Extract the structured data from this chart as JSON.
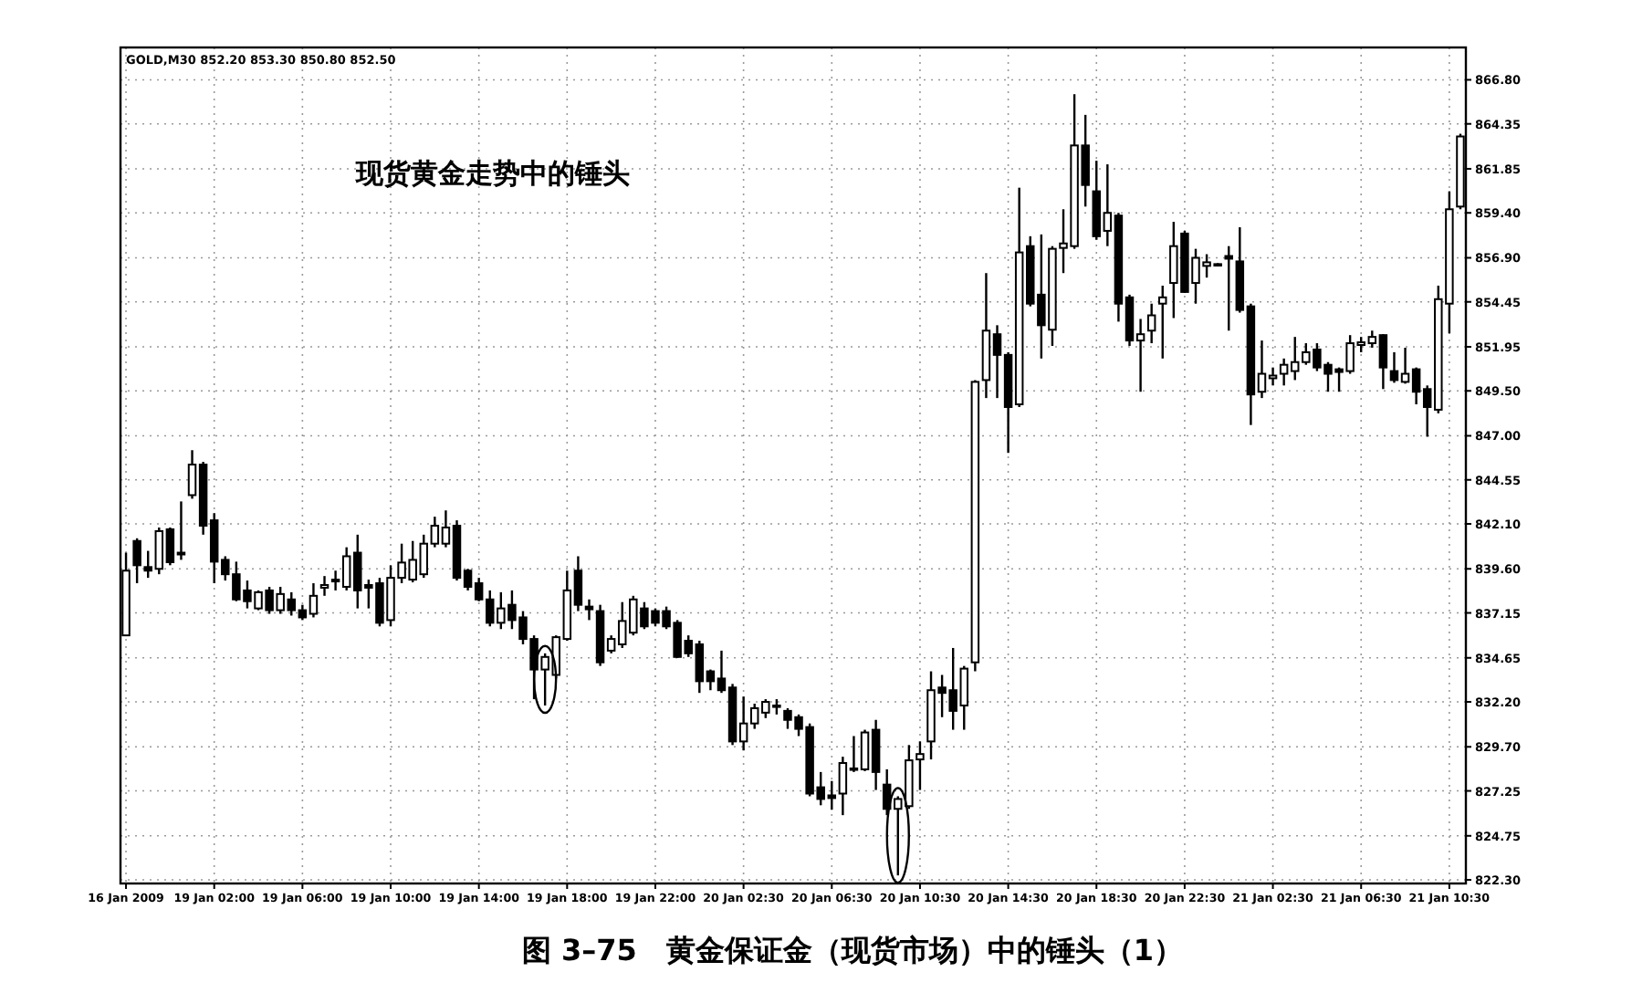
{
  "chart_data": {
    "type": "candlestick",
    "title": "图 3–75　黄金保证金（现货市场）中的锤头（1）",
    "annotations": [
      "GOLD,M30 852.20 853.30 850.80 852.50",
      "现货黄金走势中的锤头"
    ],
    "categories": [
      "16 Jan 2009",
      null,
      null,
      null,
      null,
      null,
      null,
      null,
      "19 Jan 02:00",
      null,
      null,
      null,
      null,
      null,
      null,
      null,
      "19 Jan 06:00",
      null,
      null,
      null,
      null,
      null,
      null,
      null,
      "19 Jan 10:00",
      null,
      null,
      null,
      null,
      null,
      null,
      null,
      "19 Jan 14:00",
      null,
      null,
      null,
      null,
      null,
      null,
      null,
      "19 Jan 18:00",
      null,
      null,
      null,
      null,
      null,
      null,
      null,
      "19 Jan 22:00",
      null,
      null,
      null,
      null,
      null,
      null,
      null,
      "20 Jan 02:30",
      null,
      null,
      null,
      null,
      null,
      null,
      null,
      "20 Jan 06:30",
      null,
      null,
      null,
      null,
      null,
      null,
      null,
      "20 Jan 10:30",
      null,
      null,
      null,
      null,
      null,
      null,
      null,
      "20 Jan 14:30",
      null,
      null,
      null,
      null,
      null,
      null,
      null,
      "20 Jan 18:30",
      null,
      null,
      null,
      null,
      null,
      null,
      null,
      "20 Jan 22:30",
      null,
      null,
      null,
      null,
      null,
      null,
      null,
      "21 Jan 02:30",
      null,
      null,
      null,
      null,
      null,
      null,
      null,
      "21 Jan 06:30",
      null,
      null,
      null,
      null,
      null,
      null,
      null,
      "21 Jan 10:30",
      null
    ],
    "ohlc": [
      [
        835.9,
        840.5,
        835.9,
        839.5
      ],
      [
        841.15,
        841.3,
        838.8,
        839.8
      ],
      [
        839.7,
        840.6,
        839.1,
        839.5
      ],
      [
        839.6,
        841.9,
        839.3,
        841.7
      ],
      [
        841.8,
        841.9,
        839.8,
        839.97
      ],
      [
        840.5,
        843.35,
        840.1,
        840.4
      ],
      [
        843.7,
        846.2,
        843.5,
        845.4
      ],
      [
        845.4,
        845.55,
        841.5,
        842.0
      ],
      [
        842.3,
        842.7,
        838.8,
        840.0
      ],
      [
        840.1,
        840.3,
        838.95,
        839.3
      ],
      [
        839.3,
        840.0,
        837.8,
        837.9
      ],
      [
        838.4,
        838.95,
        837.4,
        837.8
      ],
      [
        837.4,
        838.4,
        837.3,
        838.3
      ],
      [
        838.4,
        838.6,
        837.1,
        837.3
      ],
      [
        837.3,
        838.6,
        837.1,
        838.2
      ],
      [
        837.9,
        838.3,
        837.0,
        837.3
      ],
      [
        837.3,
        837.6,
        836.75,
        836.9
      ],
      [
        837.1,
        838.8,
        836.9,
        838.1
      ],
      [
        838.55,
        839.2,
        838.1,
        838.7
      ],
      [
        838.9,
        839.5,
        838.4,
        839.0
      ],
      [
        838.6,
        840.8,
        838.4,
        840.3
      ],
      [
        840.5,
        841.5,
        837.4,
        838.4
      ],
      [
        838.7,
        839.0,
        837.4,
        838.55
      ],
      [
        838.8,
        839.1,
        836.4,
        836.6
      ],
      [
        836.75,
        839.8,
        836.4,
        839.1
      ],
      [
        839.1,
        841.0,
        838.8,
        839.95
      ],
      [
        839.0,
        841.15,
        838.85,
        840.1
      ],
      [
        839.3,
        841.5,
        839.1,
        841.0
      ],
      [
        841.0,
        842.5,
        840.8,
        842.0
      ],
      [
        841.0,
        842.85,
        840.8,
        841.9
      ],
      [
        842.0,
        842.3,
        838.95,
        839.1
      ],
      [
        839.5,
        839.6,
        838.4,
        838.6
      ],
      [
        838.8,
        839.1,
        837.8,
        837.9
      ],
      [
        837.9,
        838.4,
        836.4,
        836.6
      ],
      [
        836.6,
        838.3,
        836.25,
        837.4
      ],
      [
        837.6,
        838.4,
        836.25,
        836.75
      ],
      [
        836.9,
        837.25,
        835.4,
        835.7
      ],
      [
        835.7,
        835.9,
        832.35,
        834.0
      ],
      [
        834.0,
        834.9,
        832.0,
        834.7
      ],
      [
        833.7,
        835.9,
        833.5,
        835.8
      ],
      [
        835.7,
        839.5,
        835.6,
        838.4
      ],
      [
        839.5,
        840.3,
        837.25,
        837.6
      ],
      [
        837.5,
        837.9,
        836.75,
        837.35
      ],
      [
        837.25,
        837.6,
        834.2,
        834.4
      ],
      [
        835.05,
        835.9,
        834.9,
        835.7
      ],
      [
        835.4,
        837.75,
        835.2,
        836.7
      ],
      [
        836.05,
        838.1,
        835.9,
        837.9
      ],
      [
        837.4,
        837.75,
        836.25,
        836.4
      ],
      [
        837.25,
        837.4,
        836.4,
        836.6
      ],
      [
        837.25,
        837.5,
        836.25,
        836.4
      ],
      [
        836.6,
        836.75,
        834.65,
        834.7
      ],
      [
        835.6,
        835.9,
        834.7,
        834.9
      ],
      [
        835.4,
        835.6,
        832.7,
        833.35
      ],
      [
        833.9,
        834.0,
        832.85,
        833.35
      ],
      [
        833.5,
        835.05,
        832.7,
        832.85
      ],
      [
        833.0,
        833.2,
        829.8,
        830.0
      ],
      [
        830.0,
        832.5,
        829.5,
        831.0
      ],
      [
        831.0,
        832.1,
        830.7,
        831.85
      ],
      [
        831.6,
        832.35,
        831.3,
        832.2
      ],
      [
        832.0,
        832.35,
        831.5,
        831.95
      ],
      [
        831.7,
        831.85,
        830.7,
        831.2
      ],
      [
        831.35,
        831.5,
        830.3,
        830.7
      ],
      [
        830.8,
        831.0,
        826.95,
        827.1
      ],
      [
        827.45,
        828.3,
        826.45,
        826.8
      ],
      [
        827.0,
        827.8,
        826.2,
        826.85
      ],
      [
        827.1,
        829.15,
        825.9,
        828.8
      ],
      [
        828.45,
        830.3,
        828.3,
        828.5
      ],
      [
        828.45,
        830.65,
        828.35,
        830.5
      ],
      [
        830.65,
        831.2,
        827.3,
        828.3
      ],
      [
        827.6,
        828.45,
        825.9,
        826.25
      ],
      [
        826.25,
        826.95,
        822.55,
        826.8
      ],
      [
        826.4,
        829.8,
        826.25,
        828.95
      ],
      [
        829.0,
        830.0,
        827.3,
        829.3
      ],
      [
        830.0,
        833.9,
        829.0,
        832.85
      ],
      [
        833.0,
        833.7,
        831.35,
        832.7
      ],
      [
        832.85,
        835.2,
        830.65,
        831.7
      ],
      [
        832.0,
        834.2,
        830.65,
        834.05
      ],
      [
        834.4,
        850.1,
        833.9,
        850.0
      ],
      [
        850.1,
        856.05,
        849.1,
        852.85
      ],
      [
        852.65,
        853.15,
        849.1,
        851.5
      ],
      [
        851.5,
        851.65,
        846.05,
        848.6
      ],
      [
        848.75,
        860.8,
        848.6,
        857.2
      ],
      [
        857.55,
        858.1,
        854.2,
        854.35
      ],
      [
        854.85,
        858.2,
        851.3,
        853.15
      ],
      [
        852.9,
        857.55,
        852.0,
        857.4
      ],
      [
        857.45,
        859.6,
        856.05,
        857.7
      ],
      [
        857.55,
        866.0,
        857.4,
        863.15
      ],
      [
        863.15,
        864.85,
        859.75,
        860.95
      ],
      [
        860.6,
        862.3,
        857.9,
        858.1
      ],
      [
        858.4,
        862.1,
        857.55,
        859.4
      ],
      [
        859.25,
        859.4,
        853.35,
        854.35
      ],
      [
        854.7,
        854.85,
        852.0,
        852.3
      ],
      [
        852.3,
        853.5,
        849.45,
        852.65
      ],
      [
        852.85,
        854.35,
        852.15,
        853.7
      ],
      [
        854.35,
        855.35,
        851.3,
        854.7
      ],
      [
        855.5,
        858.9,
        853.55,
        857.55
      ],
      [
        858.25,
        858.4,
        854.95,
        855.0
      ],
      [
        855.5,
        857.4,
        854.35,
        856.9
      ],
      [
        856.45,
        857.1,
        855.8,
        856.65
      ],
      [
        856.5,
        856.6,
        856.45,
        856.55
      ],
      [
        857.0,
        857.55,
        852.85,
        856.85
      ],
      [
        856.7,
        858.6,
        853.85,
        854.0
      ],
      [
        854.2,
        854.35,
        847.6,
        849.3
      ],
      [
        849.45,
        852.3,
        849.1,
        850.45
      ],
      [
        850.2,
        850.8,
        849.8,
        850.35
      ],
      [
        850.45,
        851.3,
        849.8,
        850.95
      ],
      [
        850.6,
        852.5,
        850.1,
        851.1
      ],
      [
        851.1,
        852.15,
        850.95,
        851.65
      ],
      [
        851.8,
        852.15,
        850.6,
        850.8
      ],
      [
        850.95,
        851.1,
        849.45,
        850.45
      ],
      [
        850.7,
        850.8,
        849.45,
        850.55
      ],
      [
        850.6,
        852.6,
        850.45,
        852.15
      ],
      [
        852.05,
        852.5,
        851.65,
        852.2
      ],
      [
        852.15,
        852.85,
        851.9,
        852.5
      ],
      [
        852.6,
        852.65,
        849.6,
        850.8
      ],
      [
        850.6,
        851.65,
        849.95,
        850.1
      ],
      [
        850.0,
        851.9,
        849.9,
        850.45
      ],
      [
        850.7,
        850.8,
        848.75,
        849.45
      ],
      [
        849.6,
        849.8,
        846.95,
        848.6
      ],
      [
        848.45,
        855.35,
        848.25,
        854.6
      ],
      [
        854.35,
        860.6,
        852.7,
        859.6
      ],
      [
        859.75,
        863.8,
        859.6,
        863.65
      ]
    ],
    "ylim": [
      822.1,
      868.6
    ],
    "yticks": [
      {
        "value": 822.3,
        "label": "822.30"
      },
      {
        "value": 824.75,
        "label": "824.75"
      },
      {
        "value": 827.25,
        "label": "827.25"
      },
      {
        "value": 829.7,
        "label": "829.70"
      },
      {
        "value": 832.2,
        "label": "832.20"
      },
      {
        "value": 834.65,
        "label": "834.65"
      },
      {
        "value": 837.15,
        "label": "837.15"
      },
      {
        "value": 839.6,
        "label": "839.60"
      },
      {
        "value": 842.1,
        "label": "842.10"
      },
      {
        "value": 844.55,
        "label": "844.55"
      },
      {
        "value": 847.0,
        "label": "847.00"
      },
      {
        "value": 849.5,
        "label": "849.50"
      },
      {
        "value": 851.95,
        "label": "851.95"
      },
      {
        "value": 854.45,
        "label": "854.45"
      },
      {
        "value": 856.9,
        "label": "856.90"
      },
      {
        "value": 859.4,
        "label": "859.40"
      },
      {
        "value": 861.85,
        "label": "861.85"
      },
      {
        "value": 864.35,
        "label": "864.35"
      },
      {
        "value": 866.8,
        "label": "866.80"
      }
    ],
    "grid": true
  }
}
